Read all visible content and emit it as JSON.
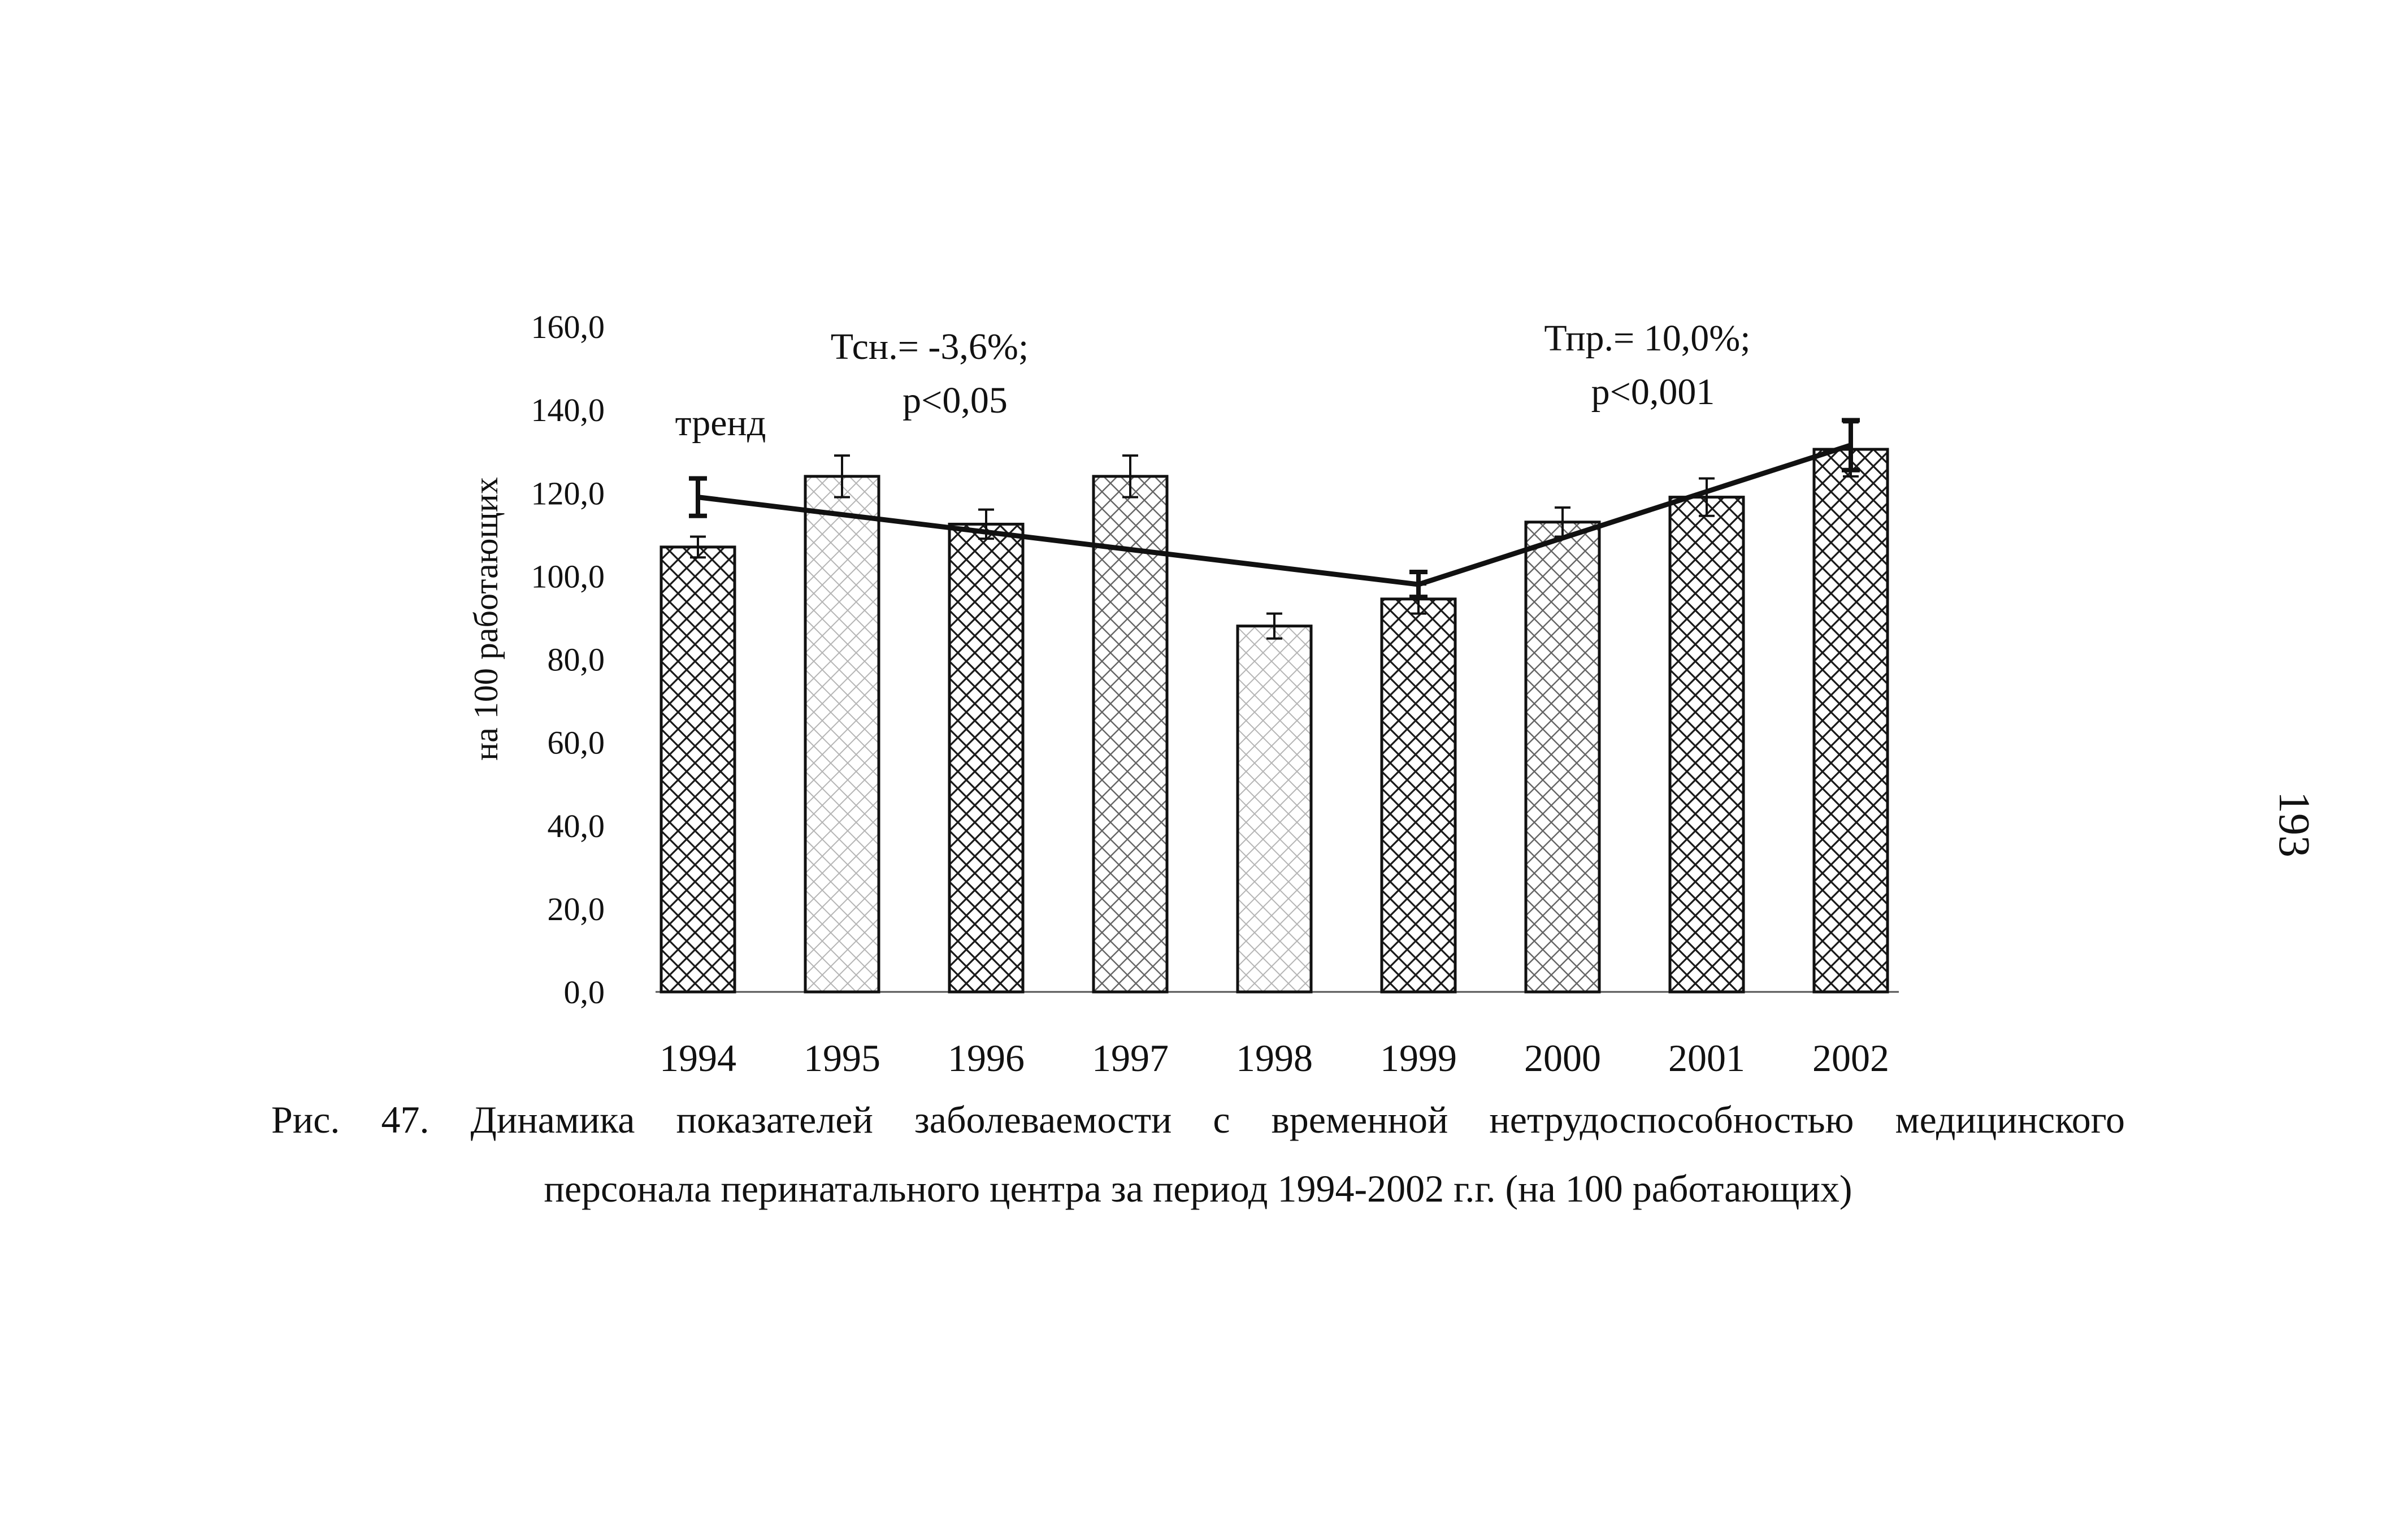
{
  "chart_data": {
    "type": "bar",
    "ylabel": "на 100 работающих",
    "ylim": [
      0,
      160
    ],
    "yticks": [
      "160,0",
      "140,0",
      "120,0",
      "100,0",
      "80,0",
      "60,0",
      "40,0",
      "20,0",
      "0,0"
    ],
    "categories": [
      "1994",
      "1995",
      "1996",
      "1997",
      "1998",
      "1999",
      "2000",
      "2001",
      "2002"
    ],
    "series": [
      {
        "values": [
          107.0,
          124.0,
          112.5,
          124.0,
          88.0,
          94.5,
          113.0,
          119.0,
          130.5
        ],
        "error": [
          2.5,
          5.0,
          3.5,
          5.0,
          3.0,
          3.5,
          3.5,
          4.5,
          6.5
        ],
        "patterns": [
          "hatch-dense",
          "hatch-sparse",
          "hatch-dense",
          "hatch-medium",
          "hatch-sparse",
          "hatch-dense",
          "hatch-medium",
          "hatch-dense",
          "hatch-dense"
        ]
      }
    ],
    "trend": {
      "label": "тренд",
      "points": [
        {
          "x": "1994",
          "y": 119.0
        },
        {
          "x": "1999",
          "y": 98.0
        },
        {
          "x": "2002",
          "y": 131.5
        }
      ]
    },
    "annotations": [
      {
        "line1": "Тсн.= -3,6%;",
        "line2": "р<0,05"
      },
      {
        "line1": "Тпр.= 10,0%;",
        "line2": "р<0,001"
      }
    ],
    "grid": false,
    "colors": {
      "ink": "#111111",
      "background": "#ffffff"
    }
  },
  "caption": {
    "line1": "Рис. 47. Динамика показателей заболеваемости с временной нетрудоспособностью медицинского",
    "line2": "персонала перинатального центра за период 1994-2002 г.г. (на 100 работающих)"
  },
  "page_number": "193"
}
